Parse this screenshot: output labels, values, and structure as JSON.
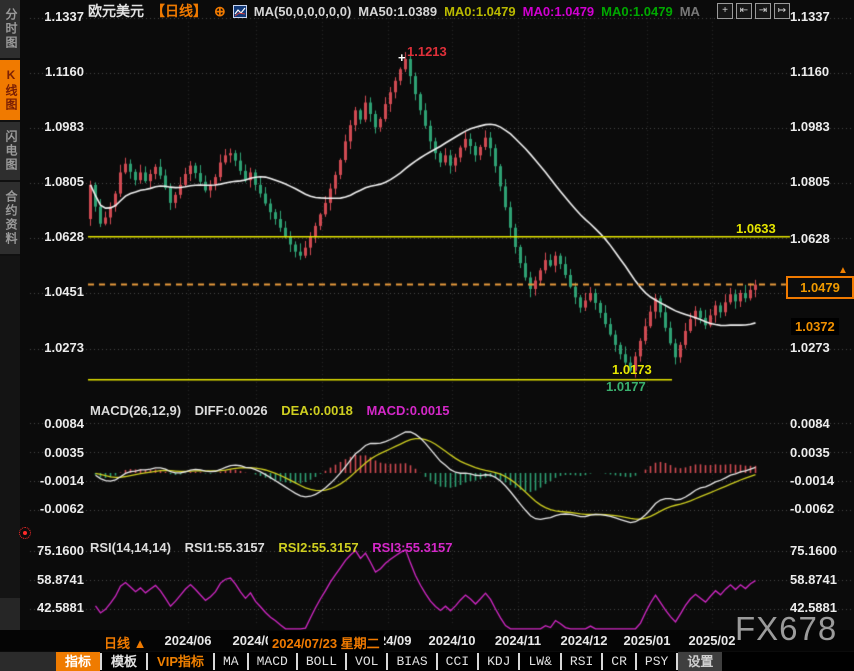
{
  "header": {
    "symbol": "欧元美元",
    "period_tag": "【日线】",
    "plus_icon": "⊕",
    "ma_settings": "MA(50,0,0,0,0,0)",
    "ma50": "MA50:1.0389",
    "ma0_yellow": "MA0:1.0479",
    "ma0_magenta": "MA0:1.0479",
    "ma0_green": "MA0:1.0479",
    "ma_gray": "MA",
    "icon_move": "+",
    "icon_left": "⇤",
    "icon_right": "⇥",
    "icon_collapse": "↦"
  },
  "sidebar": {
    "tabs": [
      {
        "label": "分时图",
        "active": false
      },
      {
        "label": "K线图",
        "active": true
      },
      {
        "label": "闪电图",
        "active": false
      },
      {
        "label": "合约资料",
        "active": false
      }
    ]
  },
  "price_pane": {
    "left_axis": [
      "1.1337",
      "1.1160",
      "1.0983",
      "1.0805",
      "1.0628",
      "1.0451",
      "1.0273"
    ],
    "right_axis": [
      "1.1337",
      "1.1160",
      "1.0983",
      "1.0805",
      "1.0628",
      "1.0273"
    ],
    "high_label": "1.1213",
    "high_marker": "+",
    "resistance_label": "1.0633",
    "support_label": "1.0173",
    "low_label": "1.0177",
    "current_price": "1.0479",
    "current_price_marker": "▲",
    "ma_price_label": "1.0372"
  },
  "macd_pane": {
    "title": "MACD(26,12,9)",
    "diff_label": "DIFF:0.0026",
    "dea_label": "DEA:0.0018",
    "macd_label": "MACD:0.0015",
    "axis": [
      "0.0084",
      "0.0035",
      "-0.0014",
      "-0.0062"
    ]
  },
  "rsi_pane": {
    "title": "RSI(14,14,14)",
    "rsi1_label": "RSI1:55.3157",
    "rsi2_label": "RSI2:55.3157",
    "rsi3_label": "RSI3:55.3157",
    "axis": [
      "75.1600",
      "58.8741",
      "42.5881"
    ]
  },
  "xaxis": {
    "period_label": "日线 ▲",
    "dates": [
      "2024/06",
      "2024/07",
      "2024/08",
      "2024/09",
      "2024/10",
      "2024/11",
      "2024/12",
      "2025/01",
      "2025/02"
    ],
    "cursor_tooltip": "2024/07/23 星期二"
  },
  "watermark": "FX678",
  "toolbar": {
    "tabs": [
      "指标",
      "模板",
      "VIP指标"
    ],
    "indicators": [
      "MA",
      "MACD",
      "BOLL",
      "VOL",
      "BIAS",
      "CCI",
      "KDJ",
      "LW&",
      "RSI",
      "CR",
      "PSY"
    ],
    "settings": "设置"
  },
  "colors": {
    "up": "#d04a52",
    "down": "#2ea174",
    "ma_line": "#f0f0f0",
    "dea_line": "#cfcf20",
    "diff_line": "#e8e8e8",
    "rsi_line": "#d428c8",
    "level_line": "#e6e600",
    "price_line": "#e89a3c",
    "grid": "#4a4a4a",
    "vgrid": "#262626",
    "accent": "#f07a00"
  },
  "chart_data": {
    "type": "candlestick+indicators",
    "symbol": "EUR/USD",
    "timeframe": "daily",
    "price_axis_ticks": [
      1.1337,
      1.116,
      1.0983,
      1.0805,
      1.0628,
      1.0451,
      1.0273
    ],
    "macd_axis_ticks": [
      0.0084,
      0.0035,
      -0.0014,
      -0.0062
    ],
    "rsi_axis_ticks": [
      75.16,
      58.8741,
      42.5881
    ],
    "x_tick_labels": [
      "2024/06",
      "2024/07",
      "2024/08",
      "2024/09",
      "2024/10",
      "2024/11",
      "2024/12",
      "2025/01",
      "2025/02"
    ],
    "levels": {
      "resistance": 1.0633,
      "support": 1.0173
    },
    "current_price": 1.0479,
    "high_point": {
      "value": 1.1213,
      "index": 63
    },
    "low_point": {
      "value": 1.0177,
      "index": 108
    },
    "ma50_last": 1.0389,
    "macd_last": {
      "diff": 0.0026,
      "dea": 0.0018,
      "macd": 0.0015
    },
    "rsi_last": {
      "rsi1": 55.3157,
      "rsi2": 55.3157,
      "rsi3": 55.3157
    },
    "open_first": 1.069,
    "closes": [
      1.08,
      1.073,
      1.0675,
      1.0695,
      1.073,
      1.0772,
      1.084,
      1.0868,
      1.0842,
      1.0815,
      1.084,
      1.0812,
      1.0835,
      1.0858,
      1.083,
      1.079,
      1.0742,
      1.0768,
      1.08,
      1.0835,
      1.0862,
      1.0838,
      1.081,
      1.0782,
      1.08,
      1.0825,
      1.0872,
      1.0895,
      1.0902,
      1.0878,
      1.0845,
      1.0815,
      1.084,
      1.08,
      1.0772,
      1.074,
      1.0712,
      1.069,
      1.0662,
      1.0635,
      1.0608,
      1.0585,
      1.0572,
      1.0598,
      1.0632,
      1.0668,
      1.0705,
      1.0742,
      1.0788,
      1.0832,
      1.088,
      1.094,
      1.0992,
      1.104,
      1.101,
      1.1065,
      1.1028,
      1.0985,
      1.1012,
      1.106,
      1.1098,
      1.1135,
      1.1172,
      1.1205,
      1.115,
      1.1092,
      1.104,
      1.099,
      1.094,
      1.0902,
      1.0872,
      1.0895,
      1.0862,
      1.0888,
      1.092,
      1.0948,
      1.0925,
      1.0895,
      1.0922,
      1.0952,
      1.0918,
      1.086,
      1.0795,
      1.0728,
      1.0662,
      1.06,
      1.0548,
      1.0502,
      1.0465,
      1.0492,
      1.0525,
      1.0558,
      1.054,
      1.0572,
      1.0545,
      1.051,
      1.0472,
      1.0438,
      1.0405,
      1.0428,
      1.0452,
      1.042,
      1.0388,
      1.0352,
      1.0318,
      1.0285,
      1.0255,
      1.0228,
      1.0202,
      1.0248,
      1.0298,
      1.0345,
      1.0392,
      1.0435,
      1.039,
      1.034,
      1.029,
      1.0245,
      1.0285,
      1.033,
      1.0368,
      1.0395,
      1.0372,
      1.0348,
      1.038,
      1.0412,
      1.039,
      1.0422,
      1.0448,
      1.0425,
      1.0452,
      1.0435,
      1.0462,
      1.0479
    ]
  }
}
